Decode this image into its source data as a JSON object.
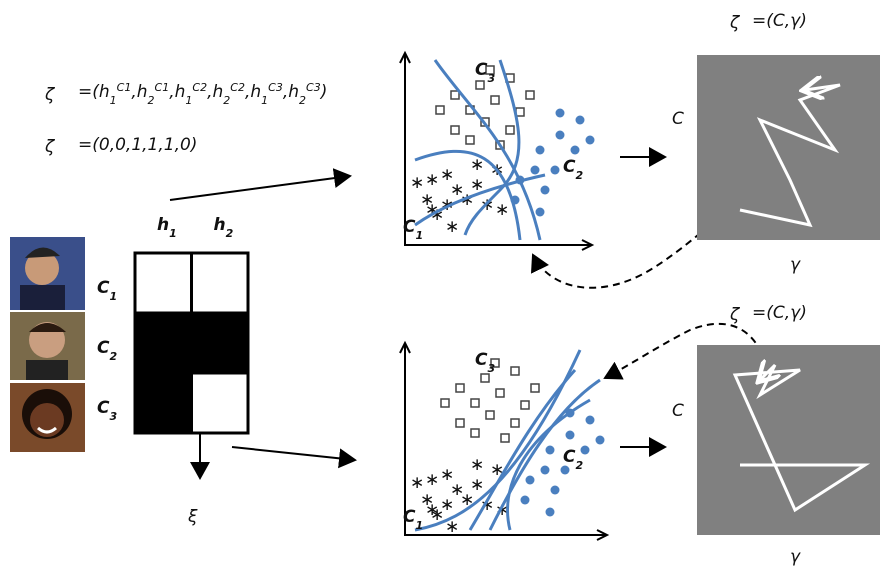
{
  "formula_1": {
    "symbol": "ζ",
    "open": "=(",
    "terms": [
      {
        "base": "h",
        "sub": "1",
        "sup": "C1"
      },
      {
        "base": "h",
        "sub": "2",
        "sup": "C1"
      },
      {
        "base": "h",
        "sub": "1",
        "sup": "C2"
      },
      {
        "base": "h",
        "sub": "2",
        "sup": "C2"
      },
      {
        "base": "h",
        "sub": "1",
        "sup": "C3"
      },
      {
        "base": "h",
        "sub": "2",
        "sup": "C3"
      }
    ],
    "separator": ",",
    "close": ")"
  },
  "formula_2": {
    "symbol": "ζ",
    "text": "=(0,0,1,1,1,0)"
  },
  "matrix": {
    "columns": [
      {
        "base": "h",
        "sub": "1"
      },
      {
        "base": "h",
        "sub": "2"
      }
    ],
    "rows": [
      {
        "base": "C",
        "sub": "1"
      },
      {
        "base": "C",
        "sub": "2"
      },
      {
        "base": "C",
        "sub": "3"
      }
    ],
    "cells": [
      [
        0,
        0
      ],
      [
        1,
        1
      ],
      [
        1,
        0
      ]
    ],
    "output": "ξ"
  },
  "scatter_panels": [
    {
      "labels": [
        {
          "base": "C",
          "sub": "3"
        },
        {
          "base": "C",
          "sub": "2"
        },
        {
          "base": "C",
          "sub": "1"
        }
      ]
    },
    {
      "labels": [
        {
          "base": "C",
          "sub": "3"
        },
        {
          "base": "C",
          "sub": "2"
        },
        {
          "base": "C",
          "sub": "1"
        }
      ]
    }
  ],
  "parameter_panels": [
    {
      "symbol": "ζ",
      "text": "=(C,γ)",
      "y_label": "C",
      "x_label": "γ"
    },
    {
      "symbol": "ζ",
      "text": "=(C,γ)",
      "y_label": "C",
      "x_label": "γ"
    }
  ]
}
